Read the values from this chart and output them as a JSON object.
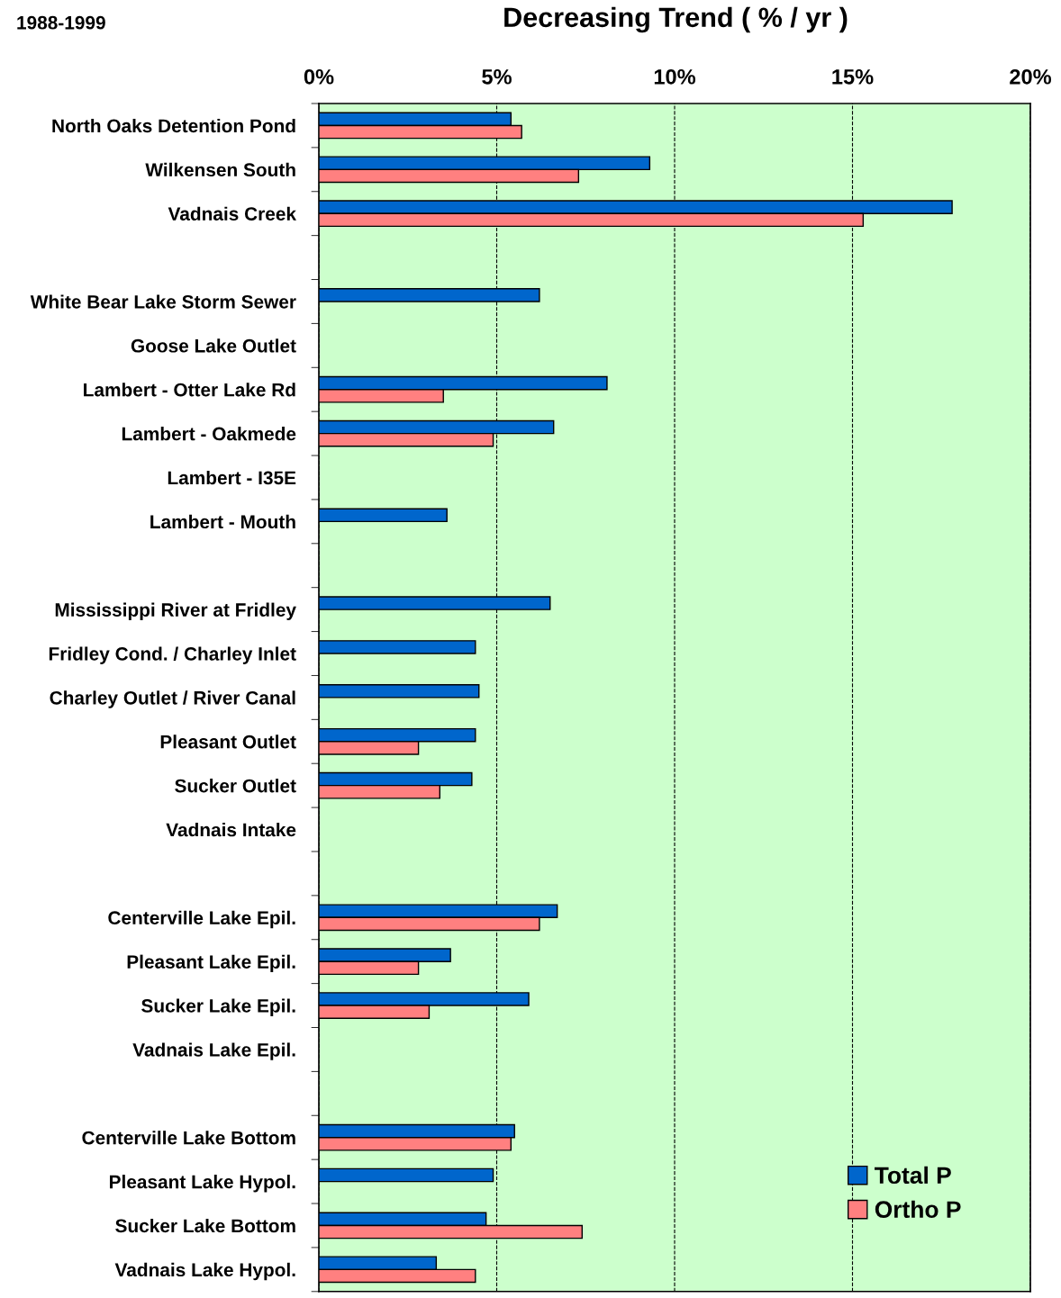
{
  "chart_data": {
    "type": "bar",
    "orientation": "horizontal",
    "title": "Decreasing Trend ( % / yr )",
    "annotations": [
      "1988-1999"
    ],
    "categories": [
      "North Oaks Detention Pond",
      "Wilkensen South",
      "Vadnais Creek",
      null,
      "White Bear Lake Storm Sewer",
      "Goose Lake Outlet",
      "Lambert - Otter Lake Rd",
      "Lambert - Oakmede",
      "Lambert - I35E",
      "Lambert - Mouth",
      null,
      "Mississippi River at Fridley",
      "Fridley Cond. / Charley Inlet",
      "Charley Outlet / River Canal",
      "Pleasant Outlet",
      "Sucker Outlet",
      "Vadnais Intake",
      null,
      "Centerville Lake Epil.",
      "Pleasant Lake Epil.",
      "Sucker Lake Epil.",
      "Vadnais Lake Epil.",
      null,
      "Centerville Lake Bottom",
      "Pleasant Lake Hypol.",
      "Sucker Lake Bottom",
      "Vadnais Lake Hypol."
    ],
    "series": [
      {
        "name": "Total P",
        "color": "#0066cc",
        "values": [
          5.4,
          9.3,
          17.8,
          null,
          6.2,
          null,
          8.1,
          6.6,
          null,
          3.6,
          null,
          6.5,
          4.4,
          4.5,
          4.4,
          4.3,
          null,
          null,
          6.7,
          3.7,
          5.9,
          null,
          null,
          5.5,
          4.9,
          4.7,
          3.3
        ]
      },
      {
        "name": "Ortho P",
        "color": "#ff8080",
        "values": [
          5.7,
          7.3,
          15.3,
          null,
          null,
          null,
          3.5,
          4.9,
          null,
          null,
          null,
          null,
          null,
          null,
          2.8,
          3.4,
          null,
          null,
          6.2,
          2.8,
          3.1,
          null,
          null,
          5.4,
          null,
          7.4,
          4.4
        ]
      }
    ],
    "xlim": [
      0,
      20
    ],
    "xticks": [
      {
        "value": 0,
        "label": "0%"
      },
      {
        "value": 5,
        "label": "5%"
      },
      {
        "value": 10,
        "label": "10%"
      },
      {
        "value": 15,
        "label": "15%"
      },
      {
        "value": 20,
        "label": "20%"
      }
    ],
    "grid": "x",
    "legend": "bottom right"
  }
}
